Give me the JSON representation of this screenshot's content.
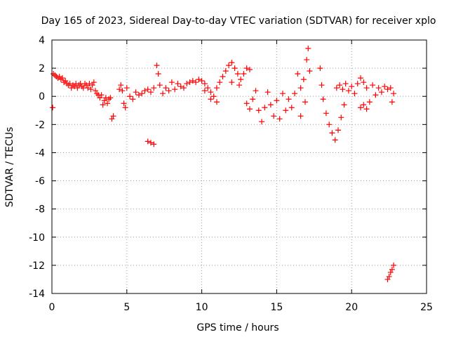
{
  "chart_data": {
    "type": "scatter",
    "title": "Day 165 of 2023, Sidereal Day-to-day VTEC variation (SDTVAR) for receiver xplo",
    "xlabel": "GPS time / hours",
    "ylabel": "SDTVAR / TECUs",
    "xlim": [
      0,
      25
    ],
    "ylim": [
      -14,
      4
    ],
    "xticks": [
      0,
      5,
      10,
      15,
      20,
      25
    ],
    "yticks": [
      4,
      2,
      0,
      -2,
      -4,
      -6,
      -8,
      -10,
      -12,
      -14
    ],
    "grid": true,
    "marker": "+",
    "color": "#ff0000",
    "series": [
      {
        "name": "SDTVAR",
        "points": [
          [
            0.05,
            -0.8
          ],
          [
            0.1,
            1.6
          ],
          [
            0.2,
            1.5
          ],
          [
            0.3,
            1.4
          ],
          [
            0.4,
            1.3
          ],
          [
            0.5,
            1.4
          ],
          [
            0.6,
            1.2
          ],
          [
            0.7,
            1.3
          ],
          [
            0.8,
            1.0
          ],
          [
            0.9,
            1.1
          ],
          [
            1.0,
            0.9
          ],
          [
            1.1,
            0.8
          ],
          [
            1.2,
            0.9
          ],
          [
            1.3,
            0.6
          ],
          [
            1.4,
            0.8
          ],
          [
            1.5,
            0.7
          ],
          [
            1.6,
            0.9
          ],
          [
            1.7,
            0.6
          ],
          [
            1.8,
            0.8
          ],
          [
            1.9,
            0.9
          ],
          [
            2.0,
            0.7
          ],
          [
            2.1,
            0.6
          ],
          [
            2.2,
            0.9
          ],
          [
            2.3,
            0.8
          ],
          [
            2.4,
            0.6
          ],
          [
            2.5,
            0.9
          ],
          [
            2.6,
            0.5
          ],
          [
            2.7,
            0.8
          ],
          [
            2.8,
            1.0
          ],
          [
            2.9,
            0.4
          ],
          [
            3.0,
            0.2
          ],
          [
            3.1,
            0.1
          ],
          [
            3.2,
            -0.1
          ],
          [
            3.3,
            0.1
          ],
          [
            3.4,
            -0.6
          ],
          [
            3.5,
            -0.3
          ],
          [
            3.6,
            -0.1
          ],
          [
            3.7,
            -0.5
          ],
          [
            3.8,
            -0.2
          ],
          [
            3.9,
            -0.1
          ],
          [
            4.0,
            -1.6
          ],
          [
            4.1,
            -1.4
          ],
          [
            4.5,
            0.5
          ],
          [
            4.6,
            0.8
          ],
          [
            4.7,
            0.4
          ],
          [
            4.8,
            -0.5
          ],
          [
            4.9,
            -0.8
          ],
          [
            5.0,
            0.6
          ],
          [
            5.2,
            0.0
          ],
          [
            5.4,
            -0.2
          ],
          [
            5.6,
            0.3
          ],
          [
            5.8,
            0.1
          ],
          [
            6.0,
            0.2
          ],
          [
            6.2,
            0.4
          ],
          [
            6.4,
            0.5
          ],
          [
            6.6,
            0.3
          ],
          [
            6.4,
            -3.2
          ],
          [
            6.6,
            -3.3
          ],
          [
            6.8,
            -3.4
          ],
          [
            6.8,
            0.6
          ],
          [
            7.0,
            2.2
          ],
          [
            7.1,
            1.6
          ],
          [
            7.2,
            0.8
          ],
          [
            7.4,
            0.2
          ],
          [
            7.6,
            0.6
          ],
          [
            7.8,
            0.4
          ],
          [
            8.0,
            1.0
          ],
          [
            8.2,
            0.5
          ],
          [
            8.4,
            0.9
          ],
          [
            8.6,
            0.7
          ],
          [
            8.8,
            0.6
          ],
          [
            9.0,
            0.9
          ],
          [
            9.2,
            1.0
          ],
          [
            9.4,
            1.1
          ],
          [
            9.6,
            1.0
          ],
          [
            9.8,
            1.2
          ],
          [
            10.0,
            1.1
          ],
          [
            10.2,
            0.9
          ],
          [
            10.4,
            0.6
          ],
          [
            10.6,
            0.3
          ],
          [
            10.8,
            0.0
          ],
          [
            11.0,
            -0.4
          ],
          [
            10.2,
            0.4
          ],
          [
            10.6,
            -0.2
          ],
          [
            11.0,
            0.6
          ],
          [
            11.2,
            1.0
          ],
          [
            11.4,
            1.4
          ],
          [
            11.6,
            1.8
          ],
          [
            11.8,
            2.2
          ],
          [
            12.0,
            2.4
          ],
          [
            12.2,
            2.0
          ],
          [
            12.4,
            1.6
          ],
          [
            12.6,
            1.2
          ],
          [
            12.8,
            1.6
          ],
          [
            13.0,
            2.0
          ],
          [
            13.2,
            1.9
          ],
          [
            12.0,
            1.0
          ],
          [
            12.5,
            0.8
          ],
          [
            13.0,
            -0.5
          ],
          [
            13.2,
            -0.9
          ],
          [
            13.4,
            -0.2
          ],
          [
            13.6,
            0.4
          ],
          [
            13.8,
            -1.0
          ],
          [
            14.0,
            -1.8
          ],
          [
            14.2,
            -0.8
          ],
          [
            14.4,
            0.3
          ],
          [
            14.6,
            -0.6
          ],
          [
            14.8,
            -1.4
          ],
          [
            15.0,
            -0.3
          ],
          [
            15.2,
            -1.6
          ],
          [
            15.4,
            0.2
          ],
          [
            15.6,
            -1.0
          ],
          [
            15.8,
            -0.2
          ],
          [
            16.0,
            -0.8
          ],
          [
            16.2,
            0.2
          ],
          [
            16.4,
            1.6
          ],
          [
            16.6,
            0.6
          ],
          [
            16.8,
            1.2
          ],
          [
            17.0,
            2.6
          ],
          [
            17.1,
            3.4
          ],
          [
            17.2,
            1.8
          ],
          [
            16.6,
            -1.4
          ],
          [
            16.9,
            -0.4
          ],
          [
            17.9,
            2.0
          ],
          [
            18.0,
            0.8
          ],
          [
            18.1,
            -0.2
          ],
          [
            18.3,
            -1.2
          ],
          [
            18.5,
            -2.0
          ],
          [
            18.7,
            -2.6
          ],
          [
            18.9,
            -3.1
          ],
          [
            19.1,
            -2.4
          ],
          [
            19.3,
            -1.5
          ],
          [
            19.5,
            -0.6
          ],
          [
            19.0,
            0.6
          ],
          [
            19.2,
            0.8
          ],
          [
            19.4,
            0.5
          ],
          [
            19.6,
            0.9
          ],
          [
            19.8,
            0.4
          ],
          [
            20.0,
            0.7
          ],
          [
            20.2,
            0.2
          ],
          [
            20.4,
            0.9
          ],
          [
            20.6,
            1.3
          ],
          [
            20.8,
            1.0
          ],
          [
            21.0,
            0.6
          ],
          [
            20.6,
            -0.8
          ],
          [
            20.8,
            -0.6
          ],
          [
            21.0,
            -0.9
          ],
          [
            21.2,
            -0.4
          ],
          [
            21.4,
            0.8
          ],
          [
            21.6,
            0.1
          ],
          [
            21.8,
            0.6
          ],
          [
            22.0,
            0.3
          ],
          [
            22.2,
            0.7
          ],
          [
            22.4,
            0.5
          ],
          [
            22.6,
            0.6
          ],
          [
            22.7,
            -0.4
          ],
          [
            22.8,
            0.2
          ],
          [
            22.4,
            -13.0
          ],
          [
            22.5,
            -12.8
          ],
          [
            22.6,
            -12.5
          ],
          [
            22.7,
            -12.3
          ],
          [
            22.8,
            -12.0
          ]
        ]
      }
    ]
  }
}
